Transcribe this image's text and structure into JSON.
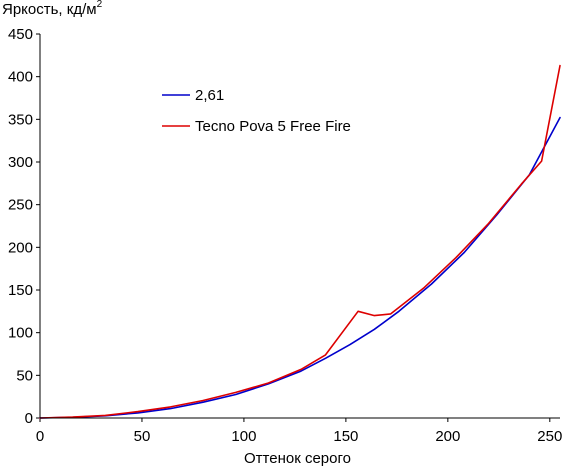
{
  "chart_data": {
    "type": "line",
    "ylabel_main": "Яркость, кд/м",
    "ylabel_sup": "2",
    "xlabel": "Оттенок серого",
    "xlim": [
      0,
      255
    ],
    "ylim": [
      0,
      450
    ],
    "xticks": [
      0,
      50,
      100,
      150,
      200,
      250
    ],
    "yticks": [
      0,
      50,
      100,
      150,
      200,
      250,
      300,
      350,
      400,
      450
    ],
    "grid": false,
    "legend_position": "top-left",
    "series": [
      {
        "name": "2,61",
        "color": "#0000cc",
        "x": [
          0,
          16,
          32,
          48,
          64,
          80,
          96,
          112,
          128,
          140,
          152,
          164,
          176,
          192,
          208,
          224,
          240,
          255
        ],
        "y": [
          0,
          0.8,
          2.6,
          6,
          11,
          18.5,
          27.5,
          40,
          55,
          70,
          86,
          104,
          125,
          157,
          194,
          238,
          285,
          352
        ]
      },
      {
        "name": "Tecno Pova 5 Free Fire",
        "color": "#dd0000",
        "x": [
          0,
          16,
          32,
          48,
          64,
          80,
          96,
          112,
          128,
          140,
          156,
          164,
          172,
          188,
          204,
          220,
          236,
          246,
          255
        ],
        "y": [
          0,
          1,
          3,
          7.5,
          13,
          20.5,
          30,
          41,
          57,
          74,
          125,
          120,
          122,
          152,
          188,
          228,
          274,
          301,
          413
        ]
      }
    ]
  }
}
